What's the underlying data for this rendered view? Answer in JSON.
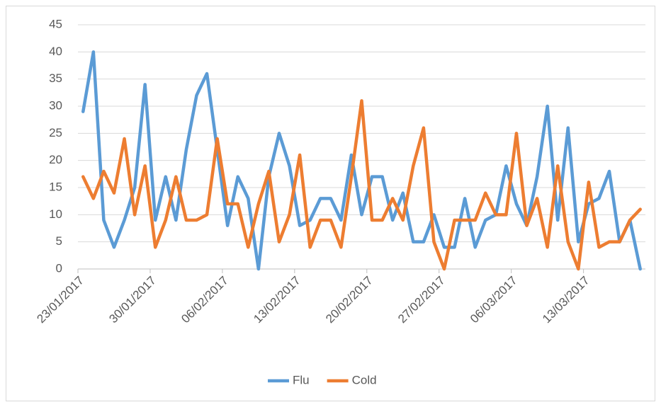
{
  "chart_data": {
    "type": "line",
    "categories": [
      "23/01/2017",
      null,
      null,
      null,
      null,
      null,
      null,
      "30/01/2017",
      null,
      null,
      null,
      null,
      null,
      null,
      "06/02/2017",
      null,
      null,
      null,
      null,
      null,
      null,
      "13/02/2017",
      null,
      null,
      null,
      null,
      null,
      null,
      "20/02/2017",
      null,
      null,
      null,
      null,
      null,
      null,
      "27/02/2017",
      null,
      null,
      null,
      null,
      null,
      null,
      "06/03/2017",
      null,
      null,
      null,
      null,
      null,
      null,
      "13/03/2017",
      null,
      null,
      null,
      null,
      null
    ],
    "series": [
      {
        "name": "Flu",
        "color": "#5b9bd5",
        "values": [
          29,
          40,
          9,
          4,
          9,
          15,
          34,
          9,
          17,
          9,
          22,
          32,
          36,
          22,
          8,
          17,
          13,
          0,
          17,
          25,
          19,
          8,
          9,
          13,
          13,
          9,
          21,
          10,
          17,
          17,
          9,
          14,
          5,
          5,
          10,
          4,
          4,
          13,
          4,
          9,
          10,
          19,
          12,
          8,
          17,
          30,
          9,
          26,
          5,
          12,
          13,
          18,
          5,
          9,
          0
        ]
      },
      {
        "name": "Cold",
        "color": "#ed7d31",
        "values": [
          17,
          13,
          18,
          14,
          24,
          10,
          19,
          4,
          9,
          17,
          9,
          9,
          10,
          24,
          12,
          12,
          4,
          12,
          18,
          5,
          10,
          21,
          4,
          9,
          9,
          4,
          17,
          31,
          9,
          9,
          13,
          9,
          19,
          26,
          5,
          0,
          9,
          9,
          9,
          14,
          10,
          10,
          25,
          8,
          13,
          4,
          19,
          5,
          0,
          16,
          4,
          5,
          5,
          9,
          11
        ]
      }
    ],
    "ylim": [
      0,
      45
    ],
    "yticks": [
      0,
      5,
      10,
      15,
      20,
      25,
      30,
      35,
      40,
      45
    ],
    "grid": true,
    "legend": "bottom"
  }
}
